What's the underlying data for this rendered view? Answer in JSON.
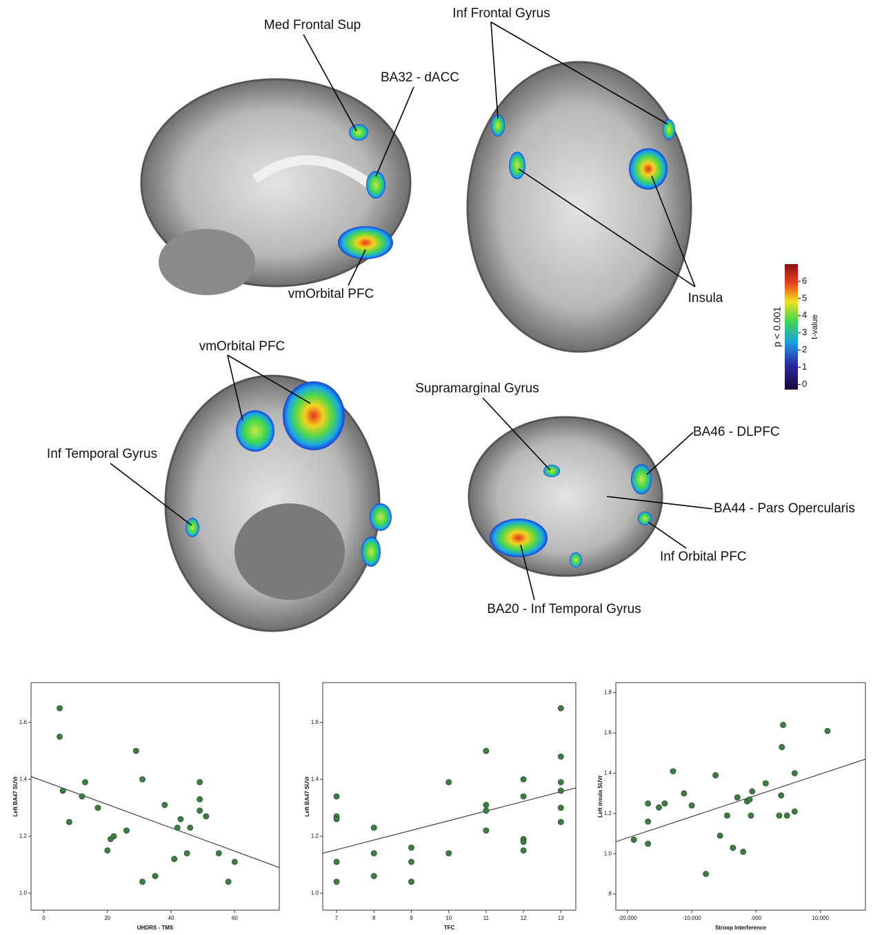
{
  "brain_figure": {
    "labels": [
      "Med Frontal Sup",
      "Inf Frontal Gyrus",
      "BA32 - dACC",
      "vmOrbital PFC",
      "Insula",
      "vmOrbital PFC",
      "Inf Temporal Gyrus",
      "Supramarginal Gyrus",
      "BA46 - DLPFC",
      "BA44 - Pars Opercularis",
      "Inf Orbital PFC",
      "BA20 - Inf Temporal Gyrus"
    ],
    "colorbar": {
      "title": "p < 0.001",
      "axis_label": "t-value",
      "lim": [
        -0.3,
        7.0
      ],
      "ticks": [
        0,
        1,
        2,
        3,
        4,
        5,
        6
      ]
    }
  },
  "chart_data": [
    {
      "type": "scatter",
      "x_label": "UHDRS - TMS",
      "y_label": "Left BA47 SUVr",
      "color": "#3f7d44",
      "xlim": [
        -4,
        74
      ],
      "ylim": [
        0.94,
        1.74
      ],
      "xticks": [
        0,
        20,
        40,
        60
      ],
      "yticks": [
        {
          "value": 1.0,
          "label": "1.0"
        },
        1.2,
        1.4,
        1.6
      ],
      "x": [
        5,
        5,
        6,
        8,
        13,
        12,
        17,
        20,
        21,
        22,
        26,
        29,
        31,
        31,
        35,
        38,
        41,
        42,
        43,
        45,
        46,
        49,
        49,
        49,
        51,
        55,
        58,
        60
      ],
      "values": [
        1.65,
        1.55,
        1.36,
        1.25,
        1.39,
        1.34,
        1.3,
        1.15,
        1.19,
        1.2,
        1.22,
        1.5,
        1.4,
        1.04,
        1.06,
        1.31,
        1.12,
        1.23,
        1.26,
        1.14,
        1.23,
        1.39,
        1.33,
        1.29,
        1.27,
        1.14,
        1.04,
        1.11
      ],
      "trend": {
        "x": [
          -4,
          74
        ],
        "y": [
          1.41,
          1.09
        ]
      }
    },
    {
      "type": "scatter",
      "x_label": "TFC",
      "y_label": "Left BA47 SUVr",
      "color": "#3f7d44",
      "xlim": [
        6.63,
        13.4
      ],
      "ylim": [
        0.94,
        1.74
      ],
      "xticks": [
        7,
        8,
        9,
        10,
        11,
        12,
        13
      ],
      "yticks": [
        {
          "value": 1.0,
          "label": "1.0"
        },
        1.2,
        1.4,
        1.6
      ],
      "x": [
        7,
        7,
        7,
        7,
        7,
        8,
        8,
        8,
        9,
        9,
        9,
        10,
        10,
        11,
        11,
        11,
        11,
        12,
        12,
        12,
        12,
        12,
        13,
        13,
        13,
        13,
        13,
        13
      ],
      "values": [
        1.34,
        1.27,
        1.26,
        1.11,
        1.04,
        1.23,
        1.14,
        1.06,
        1.16,
        1.11,
        1.04,
        1.39,
        1.14,
        1.5,
        1.31,
        1.29,
        1.22,
        1.4,
        1.34,
        1.19,
        1.18,
        1.15,
        1.65,
        1.48,
        1.39,
        1.36,
        1.3,
        1.25
      ],
      "trend": {
        "x": [
          6.63,
          13.4
        ],
        "y": [
          1.14,
          1.37
        ]
      }
    },
    {
      "type": "scatter",
      "x_label": "Stroop Interference",
      "y_label": "Left insula SUVr",
      "color": "#3f7d44",
      "xlim": [
        -21800,
        17000
      ],
      "ylim": [
        0.72,
        1.85
      ],
      "xticks": [
        {
          "value": -20000,
          "label": "-20.000"
        },
        {
          "value": -10000,
          "label": "-10.000"
        },
        {
          "value": 0,
          "label": ".000"
        },
        {
          "value": 10000,
          "label": "10.000"
        }
      ],
      "yticks": [
        {
          "value": 0.8,
          "label": ".8"
        },
        {
          "value": 1.0,
          "label": "1.0"
        },
        1.2,
        1.4,
        1.6,
        1.8
      ],
      "x": [
        -19000,
        -16800,
        -16800,
        -16800,
        -15100,
        -14200,
        -12900,
        -11200,
        -10000,
        -7800,
        -6300,
        -5600,
        -4500,
        -3600,
        -2900,
        -2000,
        -1400,
        -1000,
        -600,
        -800,
        1500,
        3600,
        3900,
        4000,
        4200,
        4800,
        6000,
        6000,
        11100
      ],
      "values": [
        1.07,
        1.25,
        1.16,
        1.05,
        1.23,
        1.25,
        1.41,
        1.3,
        1.24,
        0.9,
        1.39,
        1.09,
        1.19,
        1.03,
        1.28,
        1.01,
        1.26,
        1.27,
        1.31,
        1.19,
        1.35,
        1.19,
        1.29,
        1.53,
        1.64,
        1.19,
        1.4,
        1.21,
        1.61
      ],
      "trend": {
        "x": [
          -21800,
          17000
        ],
        "y": [
          1.06,
          1.47
        ]
      }
    }
  ]
}
